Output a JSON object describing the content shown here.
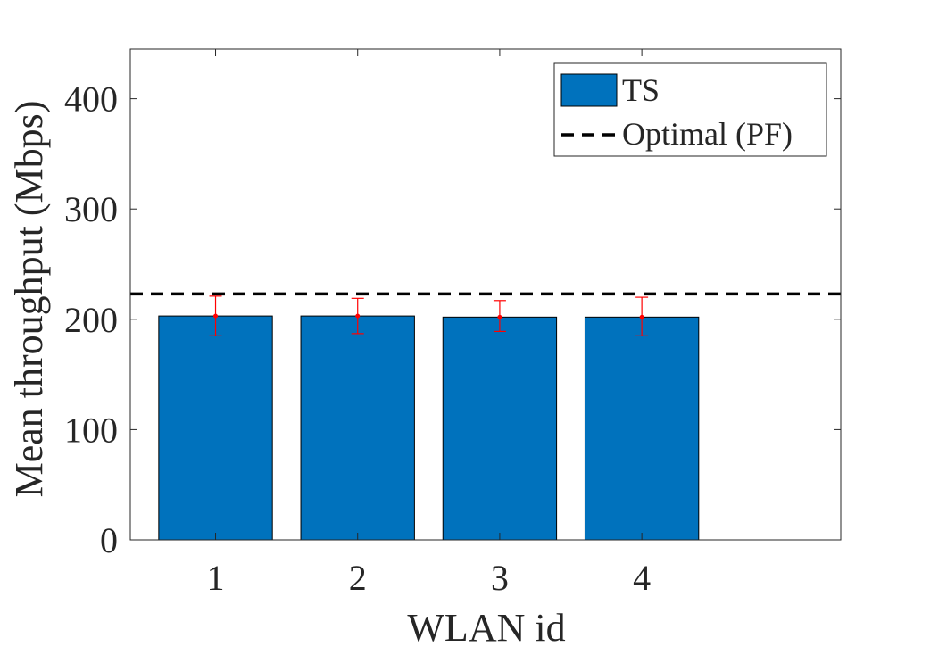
{
  "chart_data": {
    "type": "bar",
    "title": "",
    "xlabel": "WLAN id",
    "ylabel": "Mean throughput (Mbps)",
    "categories": [
      "1",
      "2",
      "3",
      "4"
    ],
    "series": [
      {
        "name": "TS",
        "values": [
          203,
          203,
          202,
          202
        ],
        "error_low": [
          185,
          187,
          189,
          185
        ],
        "error_high": [
          221,
          219,
          217,
          220
        ],
        "color": "#0072BD"
      }
    ],
    "reference_lines": [
      {
        "name": "Optimal (PF)",
        "y": 223,
        "style": "dashed",
        "color": "#000000"
      }
    ],
    "error_bar_color": "#FF0000",
    "ylim": [
      0,
      445
    ],
    "yticks": [
      "0",
      "100",
      "200",
      "300",
      "400"
    ],
    "xlim": [
      0.4,
      5.4
    ],
    "grid": false,
    "legend": {
      "position": "top-right",
      "entries": [
        "TS",
        "Optimal (PF)"
      ]
    }
  }
}
